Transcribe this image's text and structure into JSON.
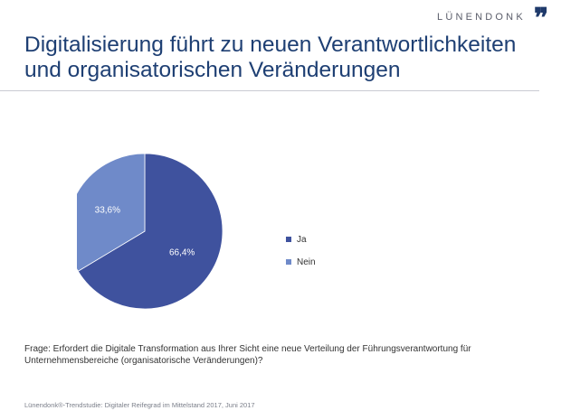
{
  "brand": {
    "name": "LÜNENDONK",
    "mark": "❞"
  },
  "title": "Digitalisierung führt zu neuen Verantwortlichkeiten und organisatorischen Veränderungen",
  "question": "Frage: Erfordert die Digitale Transformation aus Ihrer Sicht eine neue Verteilung der Führungsverantwortung für Unternehmensbereiche (organisatorische Veränderungen)?",
  "source": "Lünendonk®-Trendstudie: Digitaler Reifegrad im Mittelstand 2017, Juni 2017",
  "colors": {
    "ja": "#3f529e",
    "nein": "#6f8ac9"
  },
  "chart_data": {
    "type": "pie",
    "title": "",
    "categories": [
      "Ja",
      "Nein"
    ],
    "values": [
      66.4,
      33.6
    ],
    "data_labels": [
      "66,4%",
      "33,6%"
    ],
    "unit": "%",
    "start_angle": "12 o'clock, clockwise",
    "legend": "right"
  }
}
